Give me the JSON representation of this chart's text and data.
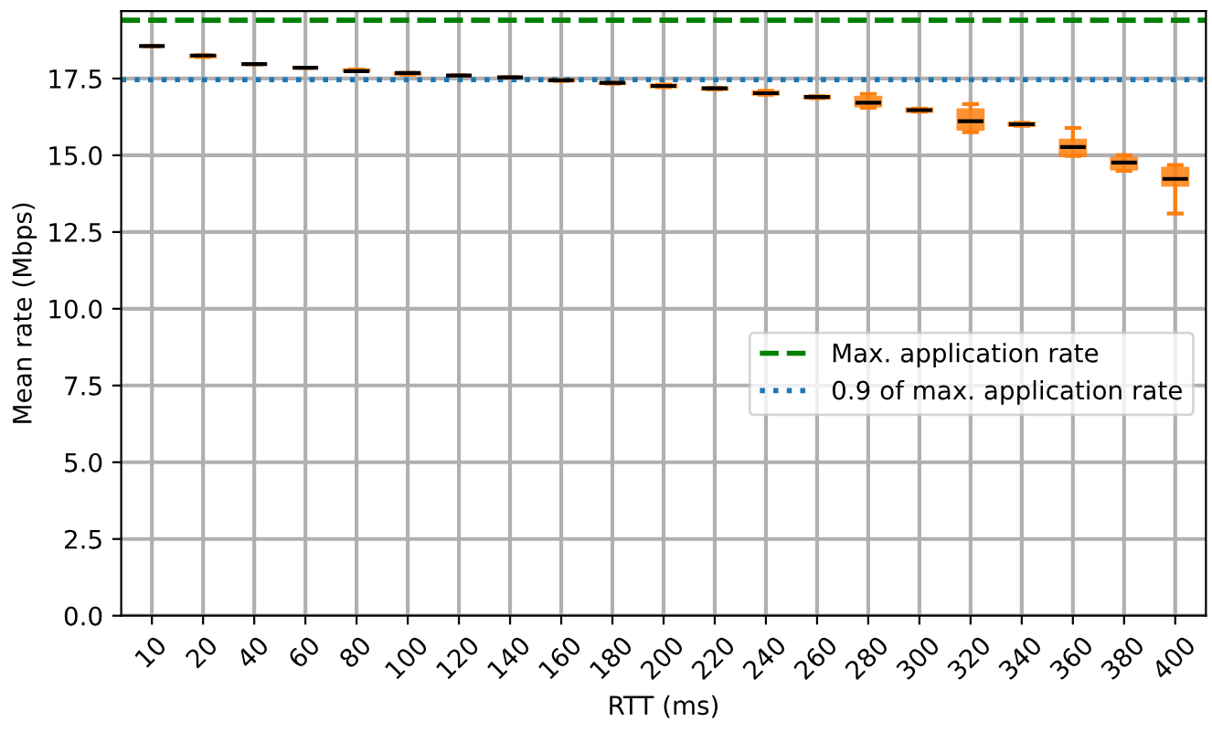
{
  "chart_data": {
    "type": "box",
    "xlabel": "RTT (ms)",
    "ylabel": "Mean rate (Mbps)",
    "categories": [
      "10",
      "20",
      "40",
      "60",
      "80",
      "100",
      "120",
      "140",
      "160",
      "180",
      "200",
      "220",
      "240",
      "260",
      "280",
      "300",
      "320",
      "340",
      "360",
      "380",
      "400"
    ],
    "color": "#ff7f0e",
    "boxes": [
      {
        "low": 18.56,
        "q1": 18.56,
        "median": 18.56,
        "q3": 18.56,
        "high": 18.56
      },
      {
        "low": 18.2,
        "q1": 18.2,
        "median": 18.25,
        "q3": 18.26,
        "high": 18.26
      },
      {
        "low": 17.97,
        "q1": 17.97,
        "median": 17.97,
        "q3": 17.97,
        "high": 17.97
      },
      {
        "low": 17.85,
        "q1": 17.85,
        "median": 17.85,
        "q3": 17.85,
        "high": 17.85
      },
      {
        "low": 17.74,
        "q1": 17.74,
        "median": 17.74,
        "q3": 17.79,
        "high": 17.79
      },
      {
        "low": 17.63,
        "q1": 17.63,
        "median": 17.68,
        "q3": 17.68,
        "high": 17.68
      },
      {
        "low": 17.6,
        "q1": 17.6,
        "median": 17.6,
        "q3": 17.6,
        "high": 17.6
      },
      {
        "low": 17.54,
        "q1": 17.54,
        "median": 17.54,
        "q3": 17.54,
        "high": 17.54
      },
      {
        "low": 17.42,
        "q1": 17.42,
        "median": 17.44,
        "q3": 17.45,
        "high": 17.45
      },
      {
        "low": 17.33,
        "q1": 17.33,
        "median": 17.36,
        "q3": 17.36,
        "high": 17.36
      },
      {
        "low": 17.22,
        "q1": 17.22,
        "median": 17.26,
        "q3": 17.3,
        "high": 17.3
      },
      {
        "low": 17.14,
        "q1": 17.14,
        "median": 17.18,
        "q3": 17.2,
        "high": 17.2
      },
      {
        "low": 16.97,
        "q1": 16.98,
        "median": 17.02,
        "q3": 17.08,
        "high": 17.1
      },
      {
        "low": 16.86,
        "q1": 16.86,
        "median": 16.9,
        "q3": 16.93,
        "high": 16.93
      },
      {
        "low": 16.55,
        "q1": 16.6,
        "median": 16.71,
        "q3": 16.9,
        "high": 17.0
      },
      {
        "low": 16.42,
        "q1": 16.42,
        "median": 16.47,
        "q3": 16.52,
        "high": 16.52
      },
      {
        "low": 15.75,
        "q1": 15.84,
        "median": 16.11,
        "q3": 16.49,
        "high": 16.67
      },
      {
        "low": 15.96,
        "q1": 15.96,
        "median": 16.01,
        "q3": 16.06,
        "high": 16.06
      },
      {
        "low": 14.98,
        "q1": 14.98,
        "median": 15.27,
        "q3": 15.5,
        "high": 15.89
      },
      {
        "low": 14.49,
        "q1": 14.55,
        "median": 14.76,
        "q3": 14.9,
        "high": 15.0
      },
      {
        "low": 13.1,
        "q1": 14.02,
        "median": 14.23,
        "q3": 14.58,
        "high": 14.68
      }
    ],
    "ylim": [
      0,
      19.7
    ],
    "yticks": [
      {
        "value": 0,
        "label": "0.0"
      },
      {
        "value": 2.5,
        "label": "2.5"
      },
      {
        "value": 5,
        "label": "5.0"
      },
      {
        "value": 7.5,
        "label": "7.5"
      },
      {
        "value": 10,
        "label": "10.0"
      },
      {
        "value": 12.5,
        "label": "12.5"
      },
      {
        "value": 15,
        "label": "15.0"
      },
      {
        "value": 17.5,
        "label": "17.5"
      }
    ],
    "ref_lines": [
      {
        "axis": "y",
        "value": 19.4,
        "label": "Max. application rate",
        "color": "#008000",
        "line_style": "dashed"
      },
      {
        "axis": "y",
        "value": 17.46,
        "label": "0.9 of max. application rate",
        "color": "#1f77b4",
        "line_style": "dotted"
      }
    ],
    "grid": true,
    "legend": "right"
  }
}
